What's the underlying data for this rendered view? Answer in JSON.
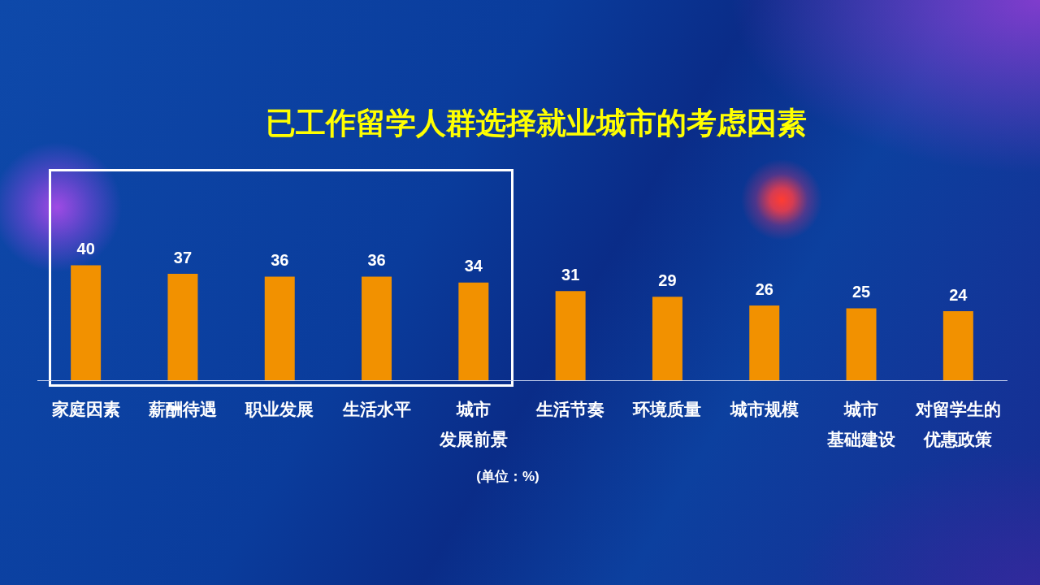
{
  "chart_data": {
    "type": "bar",
    "title": "已工作留学人群选择就业城市的考虑因素",
    "categories": [
      "家庭因素",
      "薪酬待遇",
      "职业发展",
      "生活水平",
      "城市发展前景",
      "生活节奏",
      "环境质量",
      "城市规模",
      "城市基础建设",
      "对留学生的优惠政策"
    ],
    "values": [
      40,
      37,
      36,
      36,
      34,
      31,
      29,
      26,
      25,
      24
    ],
    "color": "#f29100",
    "data_labels": true,
    "annotations": [
      "(单位：%)"
    ]
  }
}
